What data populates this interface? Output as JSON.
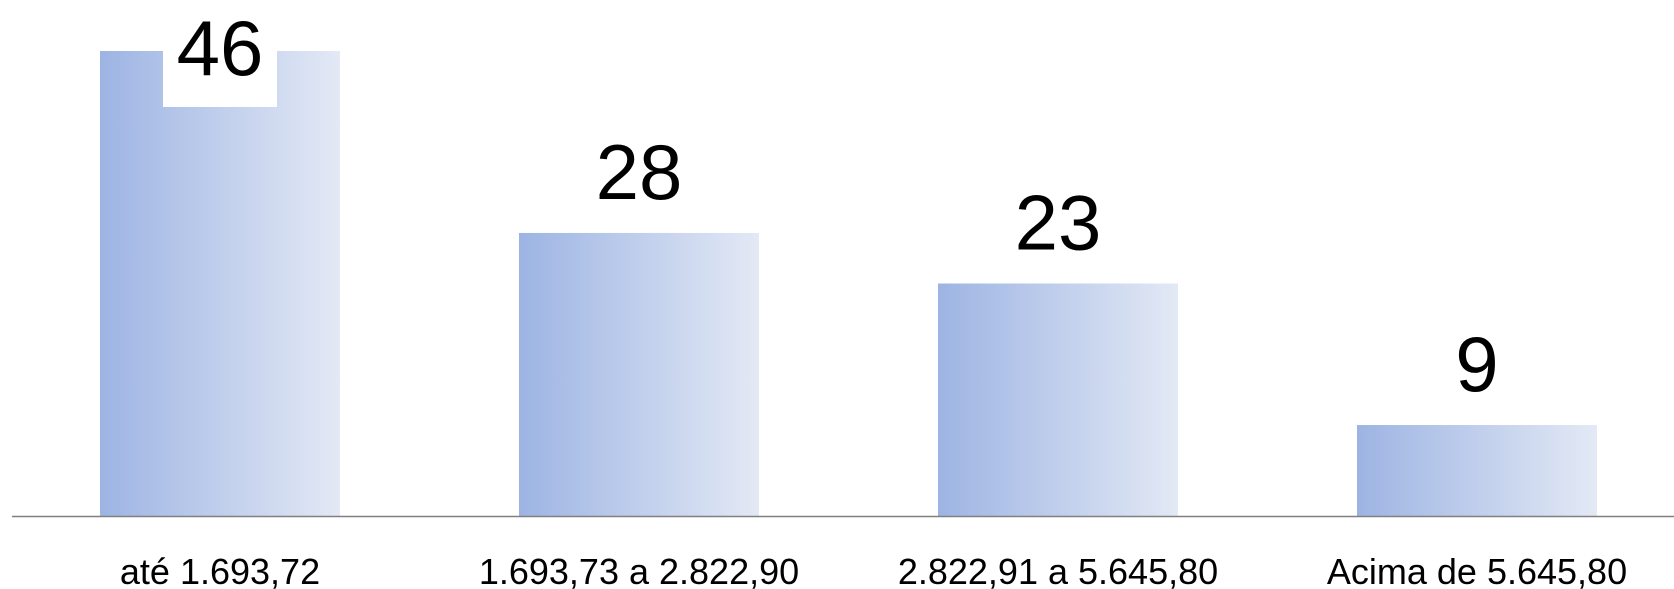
{
  "chart_data": {
    "type": "bar",
    "categories": [
      "até 1.693,72",
      "1.693,73 a 2.822,90",
      "2.822,91 a 5.645,80",
      "Acima de 5.645,80"
    ],
    "values": [
      46,
      28,
      23,
      9
    ],
    "data_labels": [
      "46",
      "28",
      "23",
      "9"
    ],
    "title": "",
    "xlabel": "",
    "ylabel": "",
    "ylim": [
      0,
      46
    ],
    "grid": false,
    "legend": "none"
  },
  "colors": {
    "bar_gradient_start": "#9db4e3",
    "bar_gradient_end": "#e3e9f5",
    "axis_line": "#808080",
    "text": "#000000"
  }
}
